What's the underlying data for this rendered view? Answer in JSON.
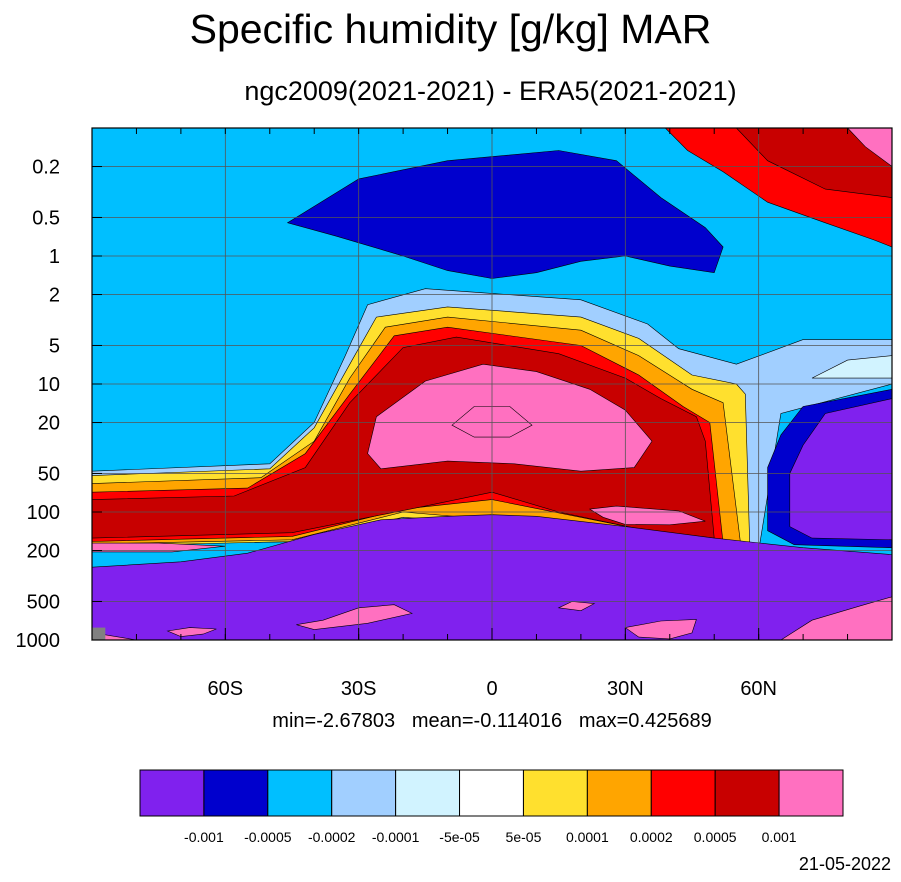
{
  "title": "Specific humidity [g/kg] MAR",
  "subtitle": "ngc2009(2021-2021) - ERA5(2021-2021)",
  "stats": {
    "min_label": "min=-2.67803",
    "mean_label": "mean=-0.114016",
    "max_label": "max=0.425689"
  },
  "date": "21-05-2022",
  "chart_data": {
    "type": "heatmap",
    "title": "Specific humidity [g/kg] MAR",
    "subtitle": "ngc2009(2021-2021) - ERA5(2021-2021)",
    "x_axis": {
      "ticks": [
        -60,
        -30,
        0,
        30,
        60
      ],
      "tick_labels": [
        "60S",
        "30S",
        "0",
        "30N",
        "60N"
      ],
      "range": [
        -90,
        90
      ]
    },
    "y_axis": {
      "scale": "log",
      "reversed": true,
      "ticks": [
        0.2,
        0.5,
        1,
        2,
        5,
        10,
        20,
        50,
        100,
        200,
        500,
        1000
      ],
      "tick_labels": [
        "0.2",
        "0.5",
        "1",
        "2",
        "5",
        "10",
        "20",
        "50",
        "100",
        "200",
        "500",
        "1000"
      ],
      "range": [
        0.1,
        1000
      ]
    },
    "grid": true,
    "levels": [
      -0.001,
      -0.0005,
      -0.0002,
      -0.0001,
      -5e-05,
      5e-05,
      0.0001,
      0.0002,
      0.0005,
      0.001
    ],
    "level_labels": [
      "-0.001",
      "-0.0005",
      "-0.0002",
      "-0.0001",
      "-5e-05",
      "5e-05",
      "0.0001",
      "0.0002",
      "0.0005",
      "0.001"
    ],
    "colors": [
      "#8021EE",
      "#0000CD",
      "#00BFFF",
      "#A1CFFF",
      "#D1F3FF",
      "#FFFFFF",
      "#FFE02E",
      "#FFA500",
      "#FF0000",
      "#C80000",
      "#FF70C0"
    ],
    "missing_color": "#808080",
    "min": -2.67803,
    "mean": -0.114016,
    "max": 0.425689,
    "regions": [
      {
        "name": "stratosphere-band",
        "level": "-0.0002",
        "points": [
          [
            -90,
            0.1
          ],
          [
            90,
            0.1
          ],
          [
            90,
            80
          ],
          [
            -90,
            80
          ]
        ]
      },
      {
        "name": "upper-negative-lobe",
        "level": "-0.0005",
        "points": [
          [
            -46,
            0.55
          ],
          [
            -30,
            0.25
          ],
          [
            -10,
            0.18
          ],
          [
            15,
            0.15
          ],
          [
            28,
            0.18
          ],
          [
            38,
            0.35
          ],
          [
            48,
            0.6
          ],
          [
            52,
            0.85
          ],
          [
            50,
            1.35
          ],
          [
            40,
            1.2
          ],
          [
            30,
            1.0
          ],
          [
            20,
            1.1
          ],
          [
            10,
            1.35
          ],
          [
            0,
            1.5
          ],
          [
            -10,
            1.3
          ],
          [
            -20,
            1.0
          ],
          [
            -35,
            0.7
          ]
        ]
      },
      {
        "name": "ne-positive-wedge",
        "level": "0.0002",
        "points": [
          [
            39,
            0.1
          ],
          [
            90,
            0.1
          ],
          [
            90,
            0.85
          ],
          [
            86,
            0.75
          ],
          [
            75,
            0.55
          ],
          [
            62,
            0.38
          ],
          [
            52,
            0.22
          ],
          [
            44,
            0.15
          ]
        ]
      },
      {
        "name": "ne-wedge-core",
        "level": "0.0005",
        "points": [
          [
            55,
            0.1
          ],
          [
            90,
            0.1
          ],
          [
            90,
            0.35
          ],
          [
            75,
            0.3
          ],
          [
            62,
            0.18
          ]
        ]
      },
      {
        "name": "ne-wedge-max",
        "level": "0.001",
        "points": [
          [
            80,
            0.1
          ],
          [
            90,
            0.1
          ],
          [
            90,
            0.2
          ],
          [
            84,
            0.14
          ]
        ]
      },
      {
        "name": "tropical-margin-light",
        "level": "-0.0001",
        "points": [
          [
            -90,
            48
          ],
          [
            -50,
            42
          ],
          [
            -40,
            20
          ],
          [
            -33,
            6
          ],
          [
            -28,
            2.4
          ],
          [
            -15,
            1.8
          ],
          [
            20,
            2.2
          ],
          [
            35,
            3.4
          ],
          [
            42,
            5.3
          ],
          [
            55,
            7
          ],
          [
            70,
            4.5
          ],
          [
            90,
            4.5
          ],
          [
            90,
            10
          ],
          [
            65,
            17
          ],
          [
            60,
            200
          ],
          [
            55,
            175
          ],
          [
            40,
            160
          ],
          [
            -20,
            120
          ],
          [
            -40,
            170
          ],
          [
            -90,
            180
          ]
        ]
      },
      {
        "name": "tropical-margin-white",
        "level": "5e-05",
        "points": [
          [
            -90,
            52
          ],
          [
            -50,
            46
          ],
          [
            -40,
            22
          ],
          [
            -32,
            7
          ],
          [
            -26,
            3
          ],
          [
            -10,
            2.5
          ],
          [
            20,
            3
          ],
          [
            33,
            4.4
          ],
          [
            45,
            8.5
          ],
          [
            55,
            10
          ],
          [
            57,
            12
          ],
          [
            58,
            190
          ],
          [
            50,
            170
          ],
          [
            40,
            155
          ],
          [
            -20,
            110
          ],
          [
            -45,
            170
          ],
          [
            -90,
            185
          ]
        ]
      },
      {
        "name": "tropical-margin-yellow",
        "level": "0.0001",
        "points": [
          [
            -90,
            60
          ],
          [
            -52,
            54
          ],
          [
            -40,
            28
          ],
          [
            -32,
            9
          ],
          [
            -24,
            3.6
          ],
          [
            -10,
            3
          ],
          [
            20,
            3.8
          ],
          [
            33,
            6
          ],
          [
            45,
            11
          ],
          [
            52,
            14
          ],
          [
            56,
            185
          ],
          [
            50,
            165
          ],
          [
            40,
            150
          ],
          [
            -20,
            100
          ],
          [
            -45,
            165
          ],
          [
            -90,
            178
          ]
        ]
      },
      {
        "name": "tropical-margin-orange",
        "level": "0.0002",
        "points": [
          [
            -90,
            70
          ],
          [
            -55,
            65
          ],
          [
            -42,
            35
          ],
          [
            -32,
            12
          ],
          [
            -22,
            4.2
          ],
          [
            -10,
            3.6
          ],
          [
            20,
            5
          ],
          [
            33,
            8.5
          ],
          [
            43,
            15
          ],
          [
            49,
            20
          ],
          [
            52,
            175
          ],
          [
            45,
            160
          ],
          [
            35,
            140
          ],
          [
            0,
            80
          ],
          [
            -20,
            95
          ],
          [
            -45,
            155
          ],
          [
            -90,
            170
          ]
        ]
      },
      {
        "name": "tropical-positive-core",
        "level": "0.0005",
        "points": [
          [
            -90,
            80
          ],
          [
            -58,
            75
          ],
          [
            -42,
            45
          ],
          [
            -32,
            14
          ],
          [
            -20,
            5.2
          ],
          [
            -8,
            4.3
          ],
          [
            15,
            5.8
          ],
          [
            30,
            9
          ],
          [
            38,
            13
          ],
          [
            46,
            18
          ],
          [
            48,
            28
          ],
          [
            50,
            160
          ],
          [
            44,
            152
          ],
          [
            35,
            140
          ],
          [
            15,
            100
          ],
          [
            0,
            70
          ],
          [
            -15,
            90
          ],
          [
            -45,
            145
          ],
          [
            -90,
            160
          ]
        ]
      },
      {
        "name": "tropical-inner-max",
        "level": "0.001",
        "points": [
          [
            -28,
            35
          ],
          [
            -26,
            18
          ],
          [
            -15,
            9.5
          ],
          [
            -2,
            7
          ],
          [
            10,
            8
          ],
          [
            22,
            11
          ],
          [
            30,
            16
          ],
          [
            36,
            28
          ],
          [
            32,
            45
          ],
          [
            20,
            48
          ],
          [
            5,
            42
          ],
          [
            -10,
            40
          ],
          [
            -25,
            46
          ]
        ]
      },
      {
        "name": "equatorial-max",
        "level": "0.001",
        "points": [
          [
            -9,
            21
          ],
          [
            -4,
            15
          ],
          [
            4,
            15
          ],
          [
            9,
            21
          ],
          [
            4,
            26
          ],
          [
            -4,
            26
          ]
        ]
      },
      {
        "name": "nh-subtropical-max",
        "level": "0.001",
        "points": [
          [
            22,
            95
          ],
          [
            28,
            90
          ],
          [
            42,
            98
          ],
          [
            48,
            118
          ],
          [
            40,
            126
          ],
          [
            30,
            125
          ],
          [
            25,
            110
          ]
        ]
      },
      {
        "name": "sh-lower-max",
        "level": "0.001",
        "points": [
          [
            -90,
            175
          ],
          [
            -75,
            175
          ],
          [
            -60,
            185
          ],
          [
            -72,
            205
          ],
          [
            -90,
            205
          ]
        ]
      },
      {
        "name": "nh-highlat-blue",
        "level": "-0.0005",
        "points": [
          [
            90,
            11
          ],
          [
            70,
            15
          ],
          [
            65,
            25
          ],
          [
            62,
            45
          ],
          [
            62,
            140
          ],
          [
            68,
            180
          ],
          [
            90,
            190
          ]
        ]
      },
      {
        "name": "nh-highlat-purple",
        "level": "-0.001",
        "points": [
          [
            90,
            13
          ],
          [
            75,
            17
          ],
          [
            70,
            30
          ],
          [
            67,
            50
          ],
          [
            67,
            130
          ],
          [
            72,
            160
          ],
          [
            90,
            165
          ]
        ]
      },
      {
        "name": "nh-polar-light",
        "level": "-5e-05",
        "points": [
          [
            90,
            6
          ],
          [
            80,
            6.5
          ],
          [
            72,
            9
          ],
          [
            90,
            9
          ]
        ]
      },
      {
        "name": "troposphere-negative",
        "level": "-0.001",
        "points": [
          [
            -90,
            270
          ],
          [
            -70,
            245
          ],
          [
            -55,
            210
          ],
          [
            -40,
            150
          ],
          [
            -25,
            115
          ],
          [
            -10,
            108
          ],
          [
            0,
            105
          ],
          [
            10,
            108
          ],
          [
            30,
            130
          ],
          [
            50,
            160
          ],
          [
            70,
            190
          ],
          [
            90,
            215
          ],
          [
            90,
            1000
          ],
          [
            -90,
            1000
          ]
        ]
      },
      {
        "name": "surface-max-sh",
        "level": "0.001",
        "points": [
          [
            -88,
            900
          ],
          [
            -80,
            1000
          ],
          [
            -90,
            1000
          ]
        ]
      },
      {
        "name": "surface-max-sh2",
        "level": "0.001",
        "points": [
          [
            -73,
            850
          ],
          [
            -68,
            800
          ],
          [
            -62,
            820
          ],
          [
            -65,
            900
          ],
          [
            -70,
            940
          ]
        ]
      },
      {
        "name": "surface-max-ant",
        "level": "0.001",
        "points": [
          [
            -44,
            760
          ],
          [
            -38,
            700
          ],
          [
            -30,
            560
          ],
          [
            -22,
            530
          ],
          [
            -18,
            620
          ],
          [
            -28,
            740
          ],
          [
            -40,
            830
          ]
        ]
      },
      {
        "name": "surface-max-eq",
        "level": "0.001",
        "points": [
          [
            15,
            560
          ],
          [
            18,
            500
          ],
          [
            23,
            520
          ],
          [
            20,
            590
          ]
        ]
      },
      {
        "name": "surface-max-nh",
        "level": "0.001",
        "points": [
          [
            30,
            800
          ],
          [
            38,
            710
          ],
          [
            46,
            690
          ],
          [
            45,
            880
          ],
          [
            40,
            980
          ],
          [
            33,
            950
          ]
        ]
      },
      {
        "name": "surface-max-arctic",
        "level": "0.001",
        "points": [
          [
            65,
            1000
          ],
          [
            72,
            700
          ],
          [
            83,
            540
          ],
          [
            90,
            460
          ],
          [
            90,
            1000
          ]
        ]
      }
    ]
  }
}
